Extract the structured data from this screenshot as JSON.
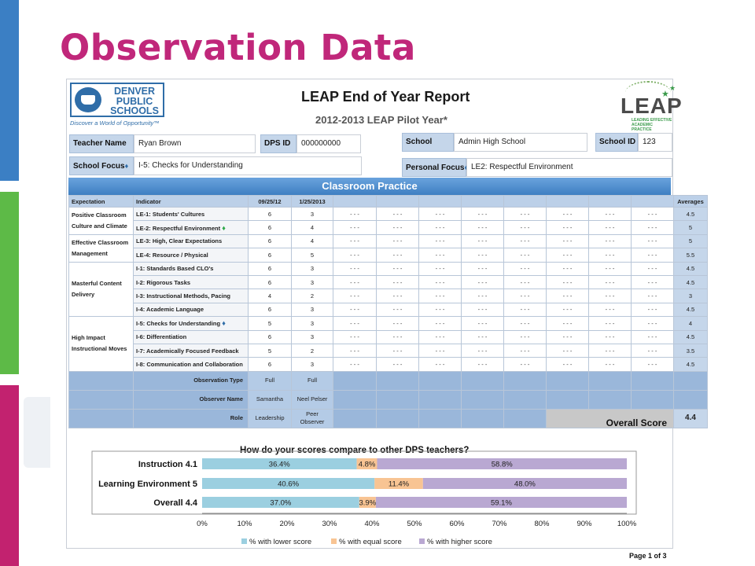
{
  "slide": {
    "title": "Observation Data"
  },
  "report": {
    "title": "LEAP End of Year Report",
    "subtitle": "2012-2013 LEAP Pilot Year*",
    "page": "Page 1 of 3",
    "dps_logo": {
      "line1": "DENVER",
      "line2": "PUBLIC",
      "line3": "SCHOOLS",
      "tagline": "Discover a World of Opportunity™"
    },
    "leap_logo": {
      "word": "LEAP",
      "tagline": "LEADING EFFECTIVE ACADEMIC PRACTICE"
    }
  },
  "info": {
    "teacher_name_label": "Teacher Name",
    "teacher_name": "Ryan Brown",
    "dps_id_label": "DPS ID",
    "dps_id": "000000000",
    "school_label": "School",
    "school": "Admin High School",
    "school_id_label": "School ID",
    "school_id": "123",
    "school_focus_label": "School Focus",
    "school_focus": "I-5: Checks for Understanding",
    "personal_focus_label": "Personal Focus",
    "personal_focus": "LE2: Respectful Environment"
  },
  "practice": {
    "title": "Classroom Practice",
    "headers": {
      "expectation": "Expectation",
      "indicator": "Indicator",
      "date1": "09/25/12",
      "date2": "1/25/2013",
      "averages": "Averages"
    },
    "empty_mark": "- - -",
    "rows": [
      {
        "indicator": "LE-1: Students' Cultures",
        "s1": "6",
        "s2": "3",
        "avg": "4.5"
      },
      {
        "indicator": "LE-2: Respectful Environment",
        "s1": "6",
        "s2": "4",
        "avg": "5"
      },
      {
        "indicator": "LE-3: High, Clear Expectations",
        "s1": "6",
        "s2": "4",
        "avg": "5"
      },
      {
        "indicator": "LE-4: Resource / Physical",
        "s1": "6",
        "s2": "5",
        "avg": "5.5"
      },
      {
        "indicator": "I-1: Standards Based CLO's",
        "s1": "6",
        "s2": "3",
        "avg": "4.5"
      },
      {
        "indicator": "I-2: Rigorous Tasks",
        "s1": "6",
        "s2": "3",
        "avg": "4.5"
      },
      {
        "indicator": "I-3: Instructional Methods, Pacing",
        "s1": "4",
        "s2": "2",
        "avg": "3"
      },
      {
        "indicator": "I-4: Academic Language",
        "s1": "6",
        "s2": "3",
        "avg": "4.5"
      },
      {
        "indicator": "I-5: Checks for Understanding",
        "s1": "5",
        "s2": "3",
        "avg": "4"
      },
      {
        "indicator": "I-6: Differentiation",
        "s1": "6",
        "s2": "3",
        "avg": "4.5"
      },
      {
        "indicator": "I-7: Academically Focused Feedback",
        "s1": "5",
        "s2": "2",
        "avg": "3.5"
      },
      {
        "indicator": "I-8: Communication and Collaboration",
        "s1": "6",
        "s2": "3",
        "avg": "4.5"
      }
    ],
    "expectations": [
      "Positive Classroom Culture and Climate",
      "Effective Classroom Management",
      "Masterful Content Delivery",
      "High Impact Instructional Moves"
    ],
    "observation_type_label": "Observation Type",
    "obs_type1": "Full",
    "obs_type2": "Full",
    "observer_name_label": "Observer Name",
    "observer1": "Samantha",
    "observer2": "Neel Pelser",
    "role_label": "Role",
    "role1": "Leadership",
    "role2": "Peer Observer",
    "overall_label": "Overall Score",
    "overall_value": "4.4"
  },
  "chart_data": {
    "type": "bar",
    "orientation": "horizontal",
    "stacked": true,
    "title": "How do your scores compare to other DPS teachers?",
    "categories": [
      "Instruction 4.1",
      "Learning Environment  5",
      "Overall 4.4"
    ],
    "series": [
      {
        "name": "% with lower score",
        "values": [
          36.4,
          40.6,
          37.0
        ],
        "labels": [
          "36.4%",
          "40.6%",
          "37.0%"
        ],
        "color": "#9bcfe0"
      },
      {
        "name": "% with equal score",
        "values": [
          4.8,
          11.4,
          3.9
        ],
        "labels": [
          "4.8%",
          "11.4%",
          "3.9%"
        ],
        "color": "#f8c493"
      },
      {
        "name": "% with higher score",
        "values": [
          58.8,
          48.0,
          59.1
        ],
        "labels": [
          "58.8%",
          "48.0%",
          "59.1%"
        ],
        "color": "#b9a8d2"
      }
    ],
    "xlim": [
      0,
      100
    ],
    "xticks": [
      "0%",
      "10%",
      "20%",
      "30%",
      "40%",
      "50%",
      "60%",
      "70%",
      "80%",
      "90%",
      "100%"
    ],
    "legend": "bottom",
    "grid": false
  }
}
